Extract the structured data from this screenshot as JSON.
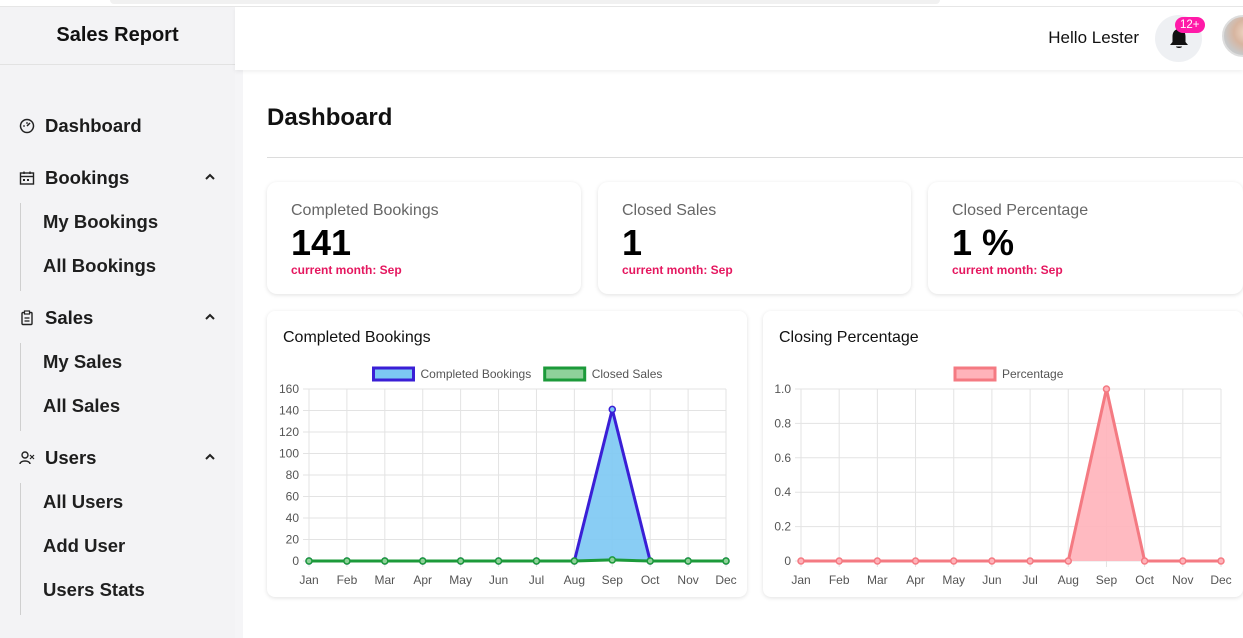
{
  "sidebar": {
    "brand": "Sales Report",
    "items": [
      {
        "label": "Dashboard",
        "icon": "dashboard-icon"
      },
      {
        "label": "Bookings",
        "icon": "calendar-icon",
        "children": [
          "My Bookings",
          "All Bookings"
        ]
      },
      {
        "label": "Sales",
        "icon": "clipboard-icon",
        "children": [
          "My Sales",
          "All Sales"
        ]
      },
      {
        "label": "Users",
        "icon": "users-icon",
        "children": [
          "All Users",
          "Add User",
          "Users Stats"
        ]
      }
    ]
  },
  "header": {
    "greeting": "Hello Lester",
    "notification_badge": "12+"
  },
  "main": {
    "title": "Dashboard",
    "cards": [
      {
        "label": "Completed Bookings",
        "value": "141",
        "note": "current month: Sep"
      },
      {
        "label": "Closed Sales",
        "value": "1",
        "note": "current month: Sep"
      },
      {
        "label": "Closed Percentage",
        "value": "1 %",
        "note": "current month: Sep"
      }
    ]
  },
  "colors": {
    "accent_pink": "#e5175f",
    "badge": "#ff1aa8",
    "bookings_line": "#3a1fd6",
    "bookings_fill": "#7cc8f3",
    "sales_line": "#1c9a3a",
    "sales_fill": "#8fd19a",
    "percentage_line": "#f47a82",
    "percentage_fill": "#ffb3ba"
  },
  "chart_data": [
    {
      "type": "line",
      "title": "Completed Bookings",
      "categories": [
        "Jan",
        "Feb",
        "Mar",
        "Apr",
        "May",
        "Jun",
        "Jul",
        "Aug",
        "Sep",
        "Oct",
        "Nov",
        "Dec"
      ],
      "series": [
        {
          "name": "Completed Bookings",
          "values": [
            0,
            0,
            0,
            0,
            0,
            0,
            0,
            0,
            141,
            0,
            0,
            0
          ]
        },
        {
          "name": "Closed Sales",
          "values": [
            0,
            0,
            0,
            0,
            0,
            0,
            0,
            0,
            1,
            0,
            0,
            0
          ]
        }
      ],
      "ylim": [
        0,
        160
      ],
      "yticks": [
        "160",
        "140",
        "120",
        "100",
        "80",
        "60",
        "40",
        "20",
        "0"
      ],
      "grid": true,
      "legend": "top"
    },
    {
      "type": "area",
      "title": "Closing Percentage",
      "categories": [
        "Jan",
        "Feb",
        "Mar",
        "Apr",
        "May",
        "Jun",
        "Jul",
        "Aug",
        "Sep",
        "Oct",
        "Nov",
        "Dec"
      ],
      "series": [
        {
          "name": "Percentage",
          "values": [
            0,
            0,
            0,
            0,
            0,
            0,
            0,
            0,
            1,
            0,
            0,
            0
          ]
        }
      ],
      "ylim": [
        0,
        1
      ],
      "yticks": [
        "1.0",
        "0.8",
        "0.6",
        "0.4",
        "0.2",
        "0"
      ],
      "grid": true,
      "legend": "top"
    }
  ]
}
